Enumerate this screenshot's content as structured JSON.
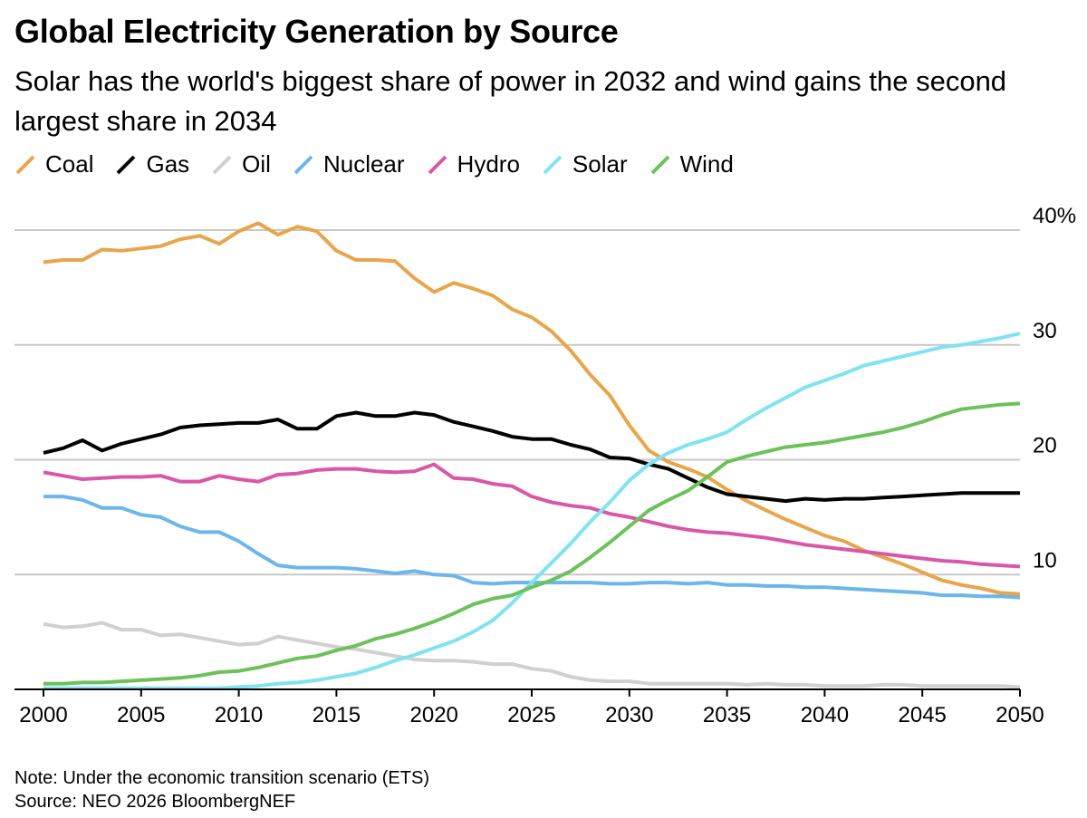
{
  "title": "Global Electricity Generation by Source",
  "subtitle": "Solar has the world's biggest share of power in 2032 and wind gains the second largest share in 2034",
  "note": "Note: Under the economic transition scenario (ETS)",
  "source": "Source: NEO 2026 BloombergNEF",
  "chart_data": {
    "type": "line",
    "title": "Global Electricity Generation by Source",
    "xlabel": "",
    "ylabel": "",
    "xlim": [
      2000,
      2050
    ],
    "ylim": [
      0,
      40
    ],
    "x_ticks": [
      "2000",
      "2005",
      "2010",
      "2015",
      "2020",
      "2025",
      "2030",
      "2035",
      "2040",
      "2045",
      "2050"
    ],
    "y_ticks": [
      {
        "value": 40,
        "label": "40%"
      },
      {
        "value": 30,
        "label": "30"
      },
      {
        "value": 20,
        "label": "20"
      },
      {
        "value": 10,
        "label": "10"
      }
    ],
    "grid": "horizontal",
    "legend_position": "top-left",
    "x": [
      2000,
      2001,
      2002,
      2003,
      2004,
      2005,
      2006,
      2007,
      2008,
      2009,
      2010,
      2011,
      2012,
      2013,
      2014,
      2015,
      2016,
      2017,
      2018,
      2019,
      2020,
      2021,
      2022,
      2023,
      2024,
      2025,
      2026,
      2027,
      2028,
      2029,
      2030,
      2031,
      2032,
      2033,
      2034,
      2035,
      2036,
      2037,
      2038,
      2039,
      2040,
      2041,
      2042,
      2043,
      2044,
      2045,
      2046,
      2047,
      2048,
      2049,
      2050
    ],
    "series": [
      {
        "name": "Coal",
        "color": "#e8a54a",
        "values": [
          37.2,
          37.4,
          37.4,
          38.3,
          38.2,
          38.4,
          38.6,
          39.2,
          39.5,
          38.8,
          39.9,
          40.6,
          39.6,
          40.3,
          39.9,
          38.2,
          37.4,
          37.4,
          37.3,
          35.8,
          34.6,
          35.4,
          34.9,
          34.3,
          33.1,
          32.4,
          31.2,
          29.5,
          27.4,
          25.6,
          23.0,
          20.8,
          19.8,
          19.2,
          18.5,
          17.4,
          16.4,
          15.6,
          14.8,
          14.1,
          13.4,
          12.9,
          12.1,
          11.5,
          10.9,
          10.2,
          9.5,
          9.1,
          8.8,
          8.4,
          8.3
        ]
      },
      {
        "name": "Gas",
        "color": "#000000",
        "values": [
          20.6,
          21.0,
          21.7,
          20.8,
          21.4,
          21.8,
          22.2,
          22.8,
          23.0,
          23.1,
          23.2,
          23.2,
          23.5,
          22.7,
          22.7,
          23.8,
          24.1,
          23.8,
          23.8,
          24.1,
          23.9,
          23.3,
          22.9,
          22.5,
          22.0,
          21.8,
          21.8,
          21.3,
          20.9,
          20.2,
          20.1,
          19.6,
          19.2,
          18.4,
          17.6,
          17.0,
          16.8,
          16.6,
          16.4,
          16.6,
          16.5,
          16.6,
          16.6,
          16.7,
          16.8,
          16.9,
          17.0,
          17.1,
          17.1,
          17.1,
          17.1
        ]
      },
      {
        "name": "Oil",
        "color": "#d0d0d0",
        "values": [
          5.7,
          5.4,
          5.5,
          5.8,
          5.2,
          5.2,
          4.7,
          4.8,
          4.5,
          4.2,
          3.9,
          4.0,
          4.6,
          4.3,
          4.0,
          3.7,
          3.5,
          3.2,
          2.9,
          2.6,
          2.5,
          2.5,
          2.4,
          2.2,
          2.2,
          1.8,
          1.6,
          1.1,
          0.8,
          0.7,
          0.7,
          0.5,
          0.5,
          0.5,
          0.5,
          0.5,
          0.4,
          0.5,
          0.4,
          0.4,
          0.3,
          0.3,
          0.3,
          0.4,
          0.4,
          0.3,
          0.3,
          0.3,
          0.3,
          0.3,
          0.2
        ]
      },
      {
        "name": "Nuclear",
        "color": "#6cb6ec",
        "values": [
          16.8,
          16.8,
          16.5,
          15.8,
          15.8,
          15.2,
          15.0,
          14.2,
          13.7,
          13.7,
          12.9,
          11.8,
          10.8,
          10.6,
          10.6,
          10.6,
          10.5,
          10.3,
          10.1,
          10.3,
          10.0,
          9.9,
          9.3,
          9.2,
          9.3,
          9.3,
          9.3,
          9.3,
          9.3,
          9.2,
          9.2,
          9.3,
          9.3,
          9.2,
          9.3,
          9.1,
          9.1,
          9.0,
          9.0,
          8.9,
          8.9,
          8.8,
          8.7,
          8.6,
          8.5,
          8.4,
          8.2,
          8.2,
          8.1,
          8.1,
          8.0
        ]
      },
      {
        "name": "Hydro",
        "color": "#d957a8",
        "values": [
          18.9,
          18.6,
          18.3,
          18.4,
          18.5,
          18.5,
          18.6,
          18.1,
          18.1,
          18.6,
          18.3,
          18.1,
          18.7,
          18.8,
          19.1,
          19.2,
          19.2,
          19.0,
          18.9,
          19.0,
          19.6,
          18.4,
          18.3,
          17.9,
          17.7,
          16.8,
          16.3,
          16.0,
          15.8,
          15.3,
          15.0,
          14.6,
          14.2,
          13.9,
          13.7,
          13.6,
          13.4,
          13.2,
          12.9,
          12.6,
          12.4,
          12.2,
          12.0,
          11.8,
          11.6,
          11.4,
          11.2,
          11.1,
          10.9,
          10.8,
          10.7
        ]
      },
      {
        "name": "Solar",
        "color": "#7fe3f0",
        "values": [
          0.1,
          0.1,
          0.1,
          0.1,
          0.1,
          0.1,
          0.1,
          0.1,
          0.1,
          0.1,
          0.2,
          0.3,
          0.5,
          0.6,
          0.8,
          1.1,
          1.4,
          1.9,
          2.5,
          3.0,
          3.6,
          4.2,
          5.0,
          6.0,
          7.5,
          9.3,
          11.0,
          12.7,
          14.6,
          16.3,
          18.2,
          19.6,
          20.6,
          21.3,
          21.8,
          22.4,
          23.5,
          24.5,
          25.4,
          26.3,
          26.9,
          27.5,
          28.2,
          28.6,
          29.0,
          29.4,
          29.8,
          30.0,
          30.3,
          30.6,
          31.0
        ]
      },
      {
        "name": "Wind",
        "color": "#6cc15a",
        "values": [
          0.5,
          0.5,
          0.6,
          0.6,
          0.7,
          0.8,
          0.9,
          1.0,
          1.2,
          1.5,
          1.6,
          1.9,
          2.3,
          2.7,
          2.9,
          3.4,
          3.8,
          4.4,
          4.8,
          5.3,
          5.9,
          6.6,
          7.4,
          7.9,
          8.2,
          8.9,
          9.5,
          10.3,
          11.5,
          12.8,
          14.2,
          15.6,
          16.5,
          17.3,
          18.5,
          19.8,
          20.3,
          20.7,
          21.1,
          21.3,
          21.5,
          21.8,
          22.1,
          22.4,
          22.8,
          23.3,
          23.9,
          24.4,
          24.6,
          24.8,
          24.9
        ]
      }
    ]
  }
}
